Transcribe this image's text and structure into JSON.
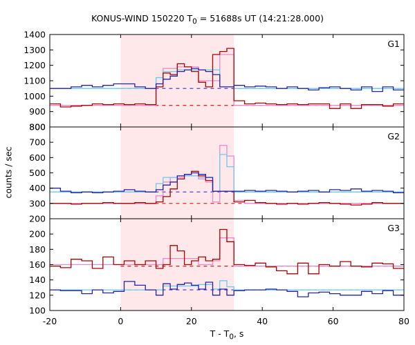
{
  "chart_data": {
    "type": "line",
    "title_prefix": "KONUS-WIND 150220 T",
    "title_sub": "0",
    "title_suffix": " = 51688s UT (14:21:28.000)",
    "ylabel": "counts / sec",
    "xlabel_prefix": "T - T",
    "xlabel_sub": "0",
    "xlabel_suffix": ", s",
    "xlim": [
      -20,
      80
    ],
    "xticks": [
      -20,
      0,
      20,
      40,
      60,
      80
    ],
    "highlight_interval": [
      0,
      32
    ],
    "colors": {
      "highlight": "#ffe8ea",
      "primary": "#aa0000",
      "primary_bg": "#c81e1e",
      "primary_fit": "#ee88cc",
      "secondary": "#2222aa",
      "secondary_bg": "#3333cc",
      "secondary_fit": "#66ccee"
    },
    "panels": [
      {
        "label": "G1",
        "ylim": [
          800,
          1400
        ],
        "yticks": [
          800,
          900,
          1000,
          1100,
          1200,
          1300,
          1400
        ],
        "bin_edges": [
          -20,
          -17,
          -14,
          -11,
          -8,
          -5,
          -2,
          1,
          4,
          7,
          10,
          12,
          14,
          16,
          18,
          20,
          22,
          24,
          26,
          28,
          30,
          32,
          35,
          38,
          41,
          44,
          47,
          50,
          53,
          56,
          59,
          62,
          65,
          68,
          71,
          74,
          77,
          80
        ],
        "series_1": [
          950,
          930,
          935,
          940,
          950,
          945,
          950,
          945,
          950,
          945,
          1060,
          1150,
          1140,
          1210,
          1190,
          1160,
          1090,
          1060,
          1270,
          1290,
          1310,
          970,
          950,
          955,
          950,
          945,
          950,
          945,
          950,
          950,
          920,
          950,
          920,
          945,
          945,
          935,
          950
        ],
        "series_2": [
          1050,
          1050,
          1060,
          1070,
          1060,
          1070,
          1080,
          1080,
          1060,
          1050,
          1080,
          1110,
          1130,
          1160,
          1170,
          1180,
          1170,
          1160,
          1140,
          1060,
          1060,
          1070,
          1060,
          1065,
          1060,
          1050,
          1060,
          1050,
          1040,
          1055,
          1060,
          1050,
          1040,
          1060,
          1030,
          1060,
          1040
        ],
        "fit_1": [
          {
            "x": [
              -20,
              10
            ],
            "y": 940
          },
          {
            "x": [
              10,
              12
            ],
            "y": 1120
          },
          {
            "x": [
              12,
              16
            ],
            "y": 1180
          },
          {
            "x": [
              16,
              22
            ],
            "y": 1190
          },
          {
            "x": [
              22,
              24
            ],
            "y": 1100
          },
          {
            "x": [
              24,
              26
            ],
            "y": 1100
          },
          {
            "x": [
              26,
              28
            ],
            "y": 1100
          },
          {
            "x": [
              28,
              32
            ],
            "y": 1270
          },
          {
            "x": [
              32,
              80
            ],
            "y": 940
          }
        ],
        "fit_2": [
          {
            "x": [
              -20,
              10
            ],
            "y": 1050
          },
          {
            "x": [
              10,
              12
            ],
            "y": 1120
          },
          {
            "x": [
              12,
              16
            ],
            "y": 1160
          },
          {
            "x": [
              16,
              28
            ],
            "y": 1170
          },
          {
            "x": [
              28,
              32
            ],
            "y": 1060
          },
          {
            "x": [
              32,
              80
            ],
            "y": 1050
          }
        ],
        "background_1": 940,
        "background_2": 1050
      },
      {
        "label": "G2",
        "ylim": [
          200,
          800
        ],
        "yticks": [
          200,
          300,
          400,
          500,
          600,
          700,
          800
        ],
        "bin_edges": [
          -20,
          -17,
          -14,
          -11,
          -8,
          -5,
          -2,
          1,
          4,
          7,
          10,
          12,
          14,
          16,
          18,
          20,
          22,
          24,
          26,
          28,
          30,
          32,
          35,
          38,
          41,
          44,
          47,
          50,
          53,
          56,
          59,
          62,
          65,
          68,
          71,
          74,
          77,
          80
        ],
        "series_1": [
          300,
          300,
          295,
          300,
          300,
          305,
          300,
          300,
          305,
          300,
          310,
          345,
          395,
          460,
          490,
          510,
          480,
          450,
          380,
          380,
          380,
          310,
          320,
          305,
          300,
          295,
          300,
          295,
          300,
          305,
          300,
          295,
          290,
          295,
          305,
          300,
          300
        ],
        "series_2": [
          400,
          380,
          370,
          375,
          370,
          375,
          380,
          390,
          380,
          375,
          390,
          420,
          440,
          480,
          490,
          500,
          490,
          470,
          380,
          380,
          380,
          380,
          385,
          380,
          385,
          380,
          375,
          380,
          385,
          375,
          390,
          385,
          395,
          380,
          385,
          380,
          370
        ],
        "fit_1": [
          {
            "x": [
              -20,
              10
            ],
            "y": 300
          },
          {
            "x": [
              10,
              12
            ],
            "y": 350
          },
          {
            "x": [
              12,
              14
            ],
            "y": 440
          },
          {
            "x": [
              14,
              18
            ],
            "y": 470
          },
          {
            "x": [
              18,
              22
            ],
            "y": 480
          },
          {
            "x": [
              22,
              24
            ],
            "y": 460
          },
          {
            "x": [
              24,
              26
            ],
            "y": 440
          },
          {
            "x": [
              26,
              28
            ],
            "y": 310
          },
          {
            "x": [
              28,
              30
            ],
            "y": 680
          },
          {
            "x": [
              30,
              32
            ],
            "y": 610
          },
          {
            "x": [
              32,
              35
            ],
            "y": 320
          },
          {
            "x": [
              35,
              80
            ],
            "y": 300
          }
        ],
        "fit_2": [
          {
            "x": [
              -20,
              10
            ],
            "y": 375
          },
          {
            "x": [
              10,
              12
            ],
            "y": 430
          },
          {
            "x": [
              12,
              16
            ],
            "y": 470
          },
          {
            "x": [
              16,
              22
            ],
            "y": 480
          },
          {
            "x": [
              22,
              26
            ],
            "y": 470
          },
          {
            "x": [
              26,
              28
            ],
            "y": 380
          },
          {
            "x": [
              28,
              30
            ],
            "y": 620
          },
          {
            "x": [
              30,
              32
            ],
            "y": 540
          },
          {
            "x": [
              32,
              80
            ],
            "y": 375
          }
        ],
        "background_1": 300,
        "background_2": 375
      },
      {
        "label": "G3",
        "ylim": [
          100,
          220
        ],
        "yticks": [
          100,
          120,
          140,
          160,
          180,
          200
        ],
        "bin_edges": [
          -20,
          -17,
          -14,
          -11,
          -8,
          -5,
          -2,
          1,
          4,
          7,
          10,
          12,
          14,
          16,
          18,
          20,
          22,
          24,
          26,
          28,
          30,
          32,
          35,
          38,
          41,
          44,
          47,
          50,
          53,
          56,
          59,
          62,
          65,
          68,
          71,
          74,
          77,
          80
        ],
        "series_1": [
          158,
          156,
          167,
          165,
          155,
          170,
          160,
          165,
          160,
          165,
          155,
          160,
          185,
          178,
          160,
          165,
          170,
          165,
          167,
          206,
          190,
          160,
          159,
          162,
          157,
          152,
          148,
          162,
          148,
          160,
          158,
          164,
          158,
          157,
          162,
          161,
          155
        ],
        "series_2": [
          127,
          126,
          126,
          122,
          127,
          123,
          125,
          138,
          133,
          127,
          120,
          135,
          128,
          134,
          136,
          133,
          128,
          137,
          120,
          128,
          120,
          126,
          127,
          127,
          128,
          127,
          125,
          118,
          123,
          124,
          122,
          120,
          120,
          125,
          122,
          126,
          120
        ],
        "fit_1": [
          {
            "x": [
              -20,
              12
            ],
            "y": 160
          },
          {
            "x": [
              12,
              22
            ],
            "y": 168
          },
          {
            "x": [
              22,
              26
            ],
            "y": 160
          },
          {
            "x": [
              26,
              28
            ],
            "y": 165
          },
          {
            "x": [
              28,
              32
            ],
            "y": 195
          },
          {
            "x": [
              32,
              80
            ],
            "y": 158
          }
        ],
        "fit_2": [
          {
            "x": [
              -20,
              12
            ],
            "y": 127
          },
          {
            "x": [
              12,
              22
            ],
            "y": 132
          },
          {
            "x": [
              22,
              26
            ],
            "y": 134
          },
          {
            "x": [
              26,
              28
            ],
            "y": 128
          },
          {
            "x": [
              28,
              30
            ],
            "y": 139
          },
          {
            "x": [
              30,
              32
            ],
            "y": 131
          },
          {
            "x": [
              32,
              80
            ],
            "y": 127
          }
        ],
        "background_1": 158,
        "background_2": 127
      }
    ]
  }
}
